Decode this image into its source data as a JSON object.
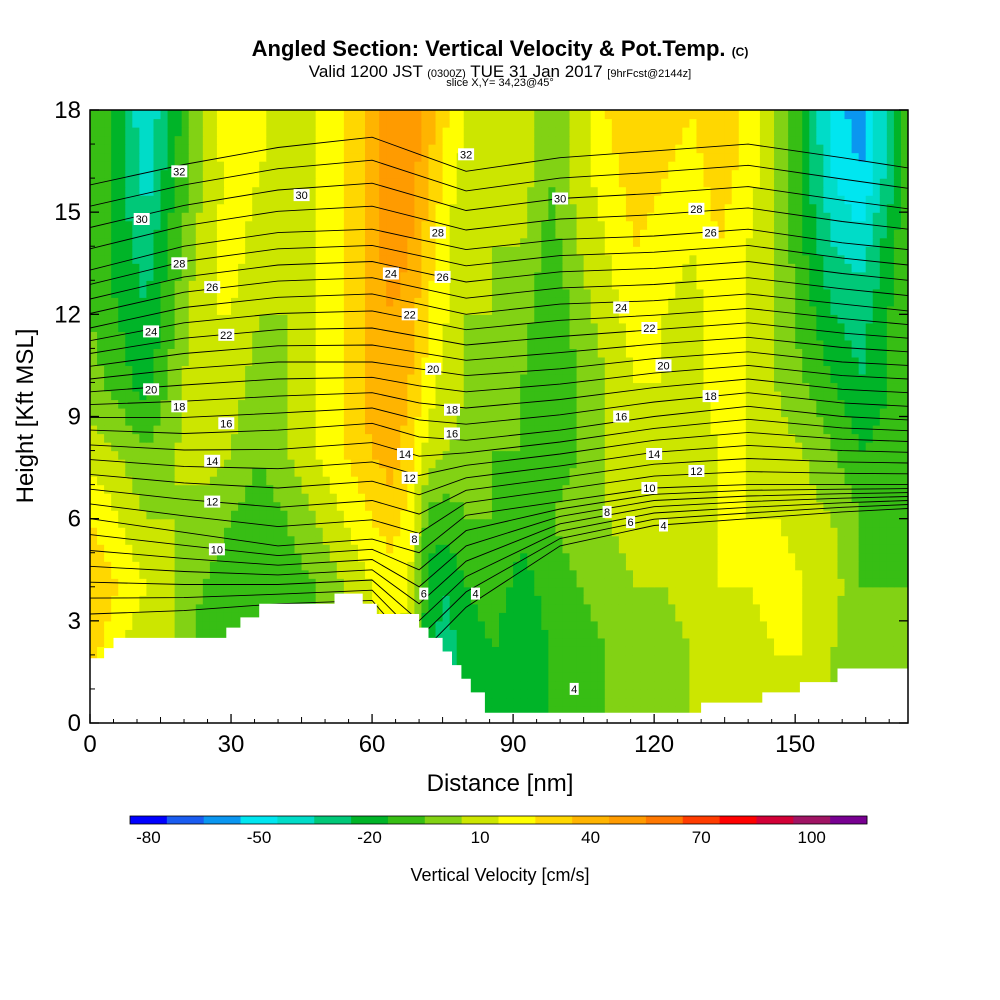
{
  "header": {
    "title": "Angled Section: Vertical Velocity & Pot.Temp.",
    "title_unit": "(C)",
    "valid_prefix": "Valid 1200 JST",
    "valid_utc": "(0300Z)",
    "valid_date": "TUE 31 Jan 2017",
    "forecast": "[9hrFcst@2144z]",
    "slice": "slice X,Y= 34,23@45°"
  },
  "chart_data": {
    "type": "heatmap",
    "xlabel": "Distance [nm]",
    "ylabel": "Height [Kft MSL]",
    "xlim": [
      0,
      174
    ],
    "ylim": [
      0,
      18
    ],
    "x_ticks": [
      0,
      30,
      60,
      90,
      120,
      150
    ],
    "y_ticks": [
      0,
      3,
      6,
      9,
      12,
      15,
      18
    ],
    "colorbar": {
      "label": "Vertical Velocity [cm/s]",
      "min": -85,
      "max": 115,
      "step": 10,
      "tick_values": [
        -80,
        -50,
        -20,
        10,
        40,
        70,
        100
      ],
      "colors": [
        "#0000ff",
        "#1a5cf0",
        "#0a96f0",
        "#00e6f0",
        "#00dcc8",
        "#00c878",
        "#00b428",
        "#37be14",
        "#82d214",
        "#cce600",
        "#ffff00",
        "#ffd700",
        "#ffb400",
        "#ff9b00",
        "#ff7800",
        "#ff3c00",
        "#ff0000",
        "#d20037",
        "#a01464",
        "#780091"
      ]
    },
    "terrain_profile": {
      "x": [
        0,
        3,
        3,
        5,
        5,
        7,
        7,
        29,
        29,
        32,
        32,
        36,
        36,
        52,
        52,
        58,
        58,
        61,
        61,
        70,
        70,
        72,
        72,
        75,
        75,
        77,
        77,
        79,
        79,
        81,
        81,
        84,
        84,
        130,
        130,
        143,
        143,
        151,
        151,
        159,
        159,
        174
      ],
      "h": [
        1.9,
        1.9,
        2.2,
        2.2,
        2.5,
        2.5,
        2.5,
        2.5,
        2.8,
        2.8,
        3.1,
        3.1,
        3.5,
        3.5,
        3.8,
        3.8,
        3.5,
        3.5,
        3.2,
        3.2,
        2.8,
        2.8,
        2.5,
        2.5,
        2.1,
        2.1,
        1.7,
        1.7,
        1.3,
        1.3,
        0.9,
        0.9,
        0.3,
        0.3,
        0.6,
        0.6,
        0.9,
        0.9,
        1.2,
        1.2,
        1.6,
        1.6
      ]
    },
    "vertical_velocity_field": {
      "x": [
        0,
        6,
        12,
        18,
        24,
        30,
        36,
        42,
        48,
        54,
        60,
        64,
        68,
        72,
        76,
        80,
        86,
        92,
        98,
        104,
        110,
        116,
        122,
        128,
        134,
        140,
        146,
        152,
        158,
        164,
        170,
        174
      ],
      "levels_kft": [
        0,
        2,
        4,
        6,
        8,
        10,
        12,
        14,
        16,
        18
      ],
      "values_cm_s": [
        [
          20,
          5,
          5,
          5,
          -10,
          -10,
          -10,
          -10,
          -5,
          -5,
          5,
          5,
          5,
          -25,
          -25,
          -20,
          -15,
          -20,
          -15,
          -10,
          -5,
          0,
          0,
          5,
          5,
          5,
          10,
          10,
          5,
          -5,
          -5,
          -5
        ],
        [
          30,
          15,
          5,
          5,
          -10,
          -15,
          -15,
          -10,
          -5,
          -5,
          10,
          15,
          10,
          -25,
          -30,
          -20,
          -15,
          -25,
          -15,
          -10,
          -5,
          0,
          0,
          5,
          10,
          10,
          15,
          15,
          5,
          -5,
          -5,
          -5
        ],
        [
          35,
          25,
          15,
          5,
          -5,
          -10,
          -15,
          -10,
          -5,
          5,
          15,
          20,
          15,
          -20,
          -25,
          -15,
          -10,
          -20,
          -10,
          -5,
          0,
          5,
          5,
          10,
          15,
          15,
          20,
          15,
          10,
          -5,
          -5,
          -5
        ],
        [
          25,
          15,
          5,
          5,
          0,
          -5,
          -10,
          -5,
          5,
          15,
          25,
          30,
          20,
          -10,
          -10,
          -5,
          -5,
          -10,
          -5,
          0,
          5,
          10,
          10,
          10,
          15,
          15,
          15,
          10,
          5,
          -5,
          -10,
          -5
        ],
        [
          10,
          5,
          -5,
          5,
          10,
          5,
          -5,
          5,
          15,
          25,
          35,
          40,
          30,
          10,
          5,
          0,
          -5,
          -5,
          -10,
          -5,
          5,
          10,
          10,
          10,
          15,
          15,
          10,
          5,
          -5,
          -15,
          -10,
          -5
        ],
        [
          0,
          -10,
          -20,
          0,
          15,
          10,
          0,
          5,
          15,
          25,
          40,
          45,
          35,
          20,
          10,
          5,
          0,
          -5,
          -15,
          -5,
          5,
          15,
          15,
          10,
          20,
          15,
          5,
          -5,
          -15,
          -25,
          -15,
          -5
        ],
        [
          -5,
          -15,
          -25,
          -5,
          15,
          15,
          5,
          5,
          15,
          25,
          40,
          45,
          40,
          25,
          15,
          5,
          5,
          0,
          -15,
          0,
          10,
          20,
          15,
          10,
          20,
          15,
          5,
          -10,
          -25,
          -30,
          -15,
          -5
        ],
        [
          -5,
          -20,
          -30,
          -10,
          10,
          20,
          10,
          5,
          15,
          25,
          40,
          50,
          45,
          30,
          15,
          5,
          5,
          5,
          -10,
          5,
          15,
          25,
          20,
          15,
          25,
          15,
          5,
          -15,
          -35,
          -40,
          -20,
          -5
        ],
        [
          -5,
          -20,
          -40,
          -15,
          5,
          20,
          15,
          5,
          15,
          25,
          40,
          50,
          50,
          35,
          20,
          10,
          5,
          10,
          -5,
          10,
          20,
          30,
          25,
          20,
          30,
          20,
          5,
          -20,
          -45,
          -55,
          -30,
          -5
        ],
        [
          -5,
          -20,
          -45,
          -20,
          5,
          25,
          20,
          5,
          15,
          25,
          40,
          50,
          55,
          40,
          25,
          15,
          5,
          10,
          -5,
          10,
          25,
          35,
          30,
          25,
          35,
          20,
          5,
          -20,
          -50,
          -60,
          -30,
          -5
        ]
      ]
    },
    "potential_temperature_contours": {
      "interval_c": 2,
      "label_values": [
        4,
        6,
        8,
        10,
        12,
        14,
        16,
        18,
        20,
        22,
        24,
        26,
        28,
        30,
        32
      ],
      "isentrope_heights_kft": {
        "x": [
          0,
          20,
          40,
          60,
          70,
          80,
          100,
          120,
          140,
          160,
          174
        ],
        "theta_4": [
          3.2,
          3.3,
          3.5,
          3.6,
          2.0,
          3.4,
          5.2,
          5.8,
          6.0,
          6.2,
          6.3
        ],
        "theta_10": [
          6.0,
          5.6,
          5.2,
          5.4,
          5.0,
          6.1,
          6.5,
          6.9,
          7.0,
          7.0,
          7.0
        ],
        "theta_16": [
          8.6,
          8.5,
          8.6,
          8.8,
          8.4,
          8.3,
          8.6,
          9.0,
          9.3,
          9.0,
          8.9
        ],
        "theta_20": [
          10.1,
          10.4,
          10.6,
          10.6,
          10.4,
          10.2,
          10.4,
          10.7,
          10.9,
          10.6,
          10.5
        ],
        "theta_24": [
          11.6,
          12.2,
          12.5,
          12.6,
          12.3,
          12.0,
          12.3,
          12.4,
          12.6,
          12.3,
          12.1
        ],
        "theta_28": [
          13.3,
          14.0,
          14.4,
          14.5,
          14.2,
          13.9,
          14.2,
          14.3,
          14.5,
          14.1,
          13.9
        ],
        "theta_32": [
          15.8,
          16.4,
          16.9,
          17.2,
          16.7,
          16.2,
          16.6,
          16.8,
          17.0,
          16.6,
          16.3
        ]
      },
      "labels": [
        {
          "value": "32",
          "x": 19,
          "y": 16.2
        },
        {
          "value": "30",
          "x": 11,
          "y": 14.8
        },
        {
          "value": "28",
          "x": 19,
          "y": 13.5
        },
        {
          "value": "26",
          "x": 26,
          "y": 12.8
        },
        {
          "value": "24",
          "x": 13,
          "y": 11.5
        },
        {
          "value": "22",
          "x": 29,
          "y": 11.4
        },
        {
          "value": "20",
          "x": 13,
          "y": 9.8
        },
        {
          "value": "18",
          "x": 19,
          "y": 9.3
        },
        {
          "value": "16",
          "x": 29,
          "y": 8.8
        },
        {
          "value": "14",
          "x": 26,
          "y": 7.7
        },
        {
          "value": "12",
          "x": 26,
          "y": 6.5
        },
        {
          "value": "10",
          "x": 27,
          "y": 5.1
        },
        {
          "value": "30",
          "x": 45,
          "y": 15.5
        },
        {
          "value": "32",
          "x": 80,
          "y": 16.7
        },
        {
          "value": "28",
          "x": 74,
          "y": 14.4
        },
        {
          "value": "26",
          "x": 75,
          "y": 13.1
        },
        {
          "value": "24",
          "x": 64,
          "y": 13.2
        },
        {
          "value": "22",
          "x": 68,
          "y": 12.0
        },
        {
          "value": "20",
          "x": 73,
          "y": 10.4
        },
        {
          "value": "18",
          "x": 77,
          "y": 9.2
        },
        {
          "value": "16",
          "x": 77,
          "y": 8.5
        },
        {
          "value": "14",
          "x": 67,
          "y": 7.9
        },
        {
          "value": "12",
          "x": 68,
          "y": 7.2
        },
        {
          "value": "8",
          "x": 69,
          "y": 5.4
        },
        {
          "value": "6",
          "x": 71,
          "y": 3.8
        },
        {
          "value": "4",
          "x": 82,
          "y": 3.8
        },
        {
          "value": "30",
          "x": 100,
          "y": 15.4
        },
        {
          "value": "28",
          "x": 129,
          "y": 15.1
        },
        {
          "value": "26",
          "x": 132,
          "y": 14.4
        },
        {
          "value": "24",
          "x": 113,
          "y": 12.2
        },
        {
          "value": "22",
          "x": 119,
          "y": 11.6
        },
        {
          "value": "20",
          "x": 122,
          "y": 10.5
        },
        {
          "value": "18",
          "x": 132,
          "y": 9.6
        },
        {
          "value": "16",
          "x": 113,
          "y": 9.0
        },
        {
          "value": "14",
          "x": 120,
          "y": 7.9
        },
        {
          "value": "12",
          "x": 129,
          "y": 7.4
        },
        {
          "value": "10",
          "x": 119,
          "y": 6.9
        },
        {
          "value": "8",
          "x": 110,
          "y": 6.2
        },
        {
          "value": "6",
          "x": 115,
          "y": 5.9
        },
        {
          "value": "4",
          "x": 122,
          "y": 5.8
        },
        {
          "value": "4",
          "x": 103,
          "y": 1.0
        }
      ]
    }
  }
}
